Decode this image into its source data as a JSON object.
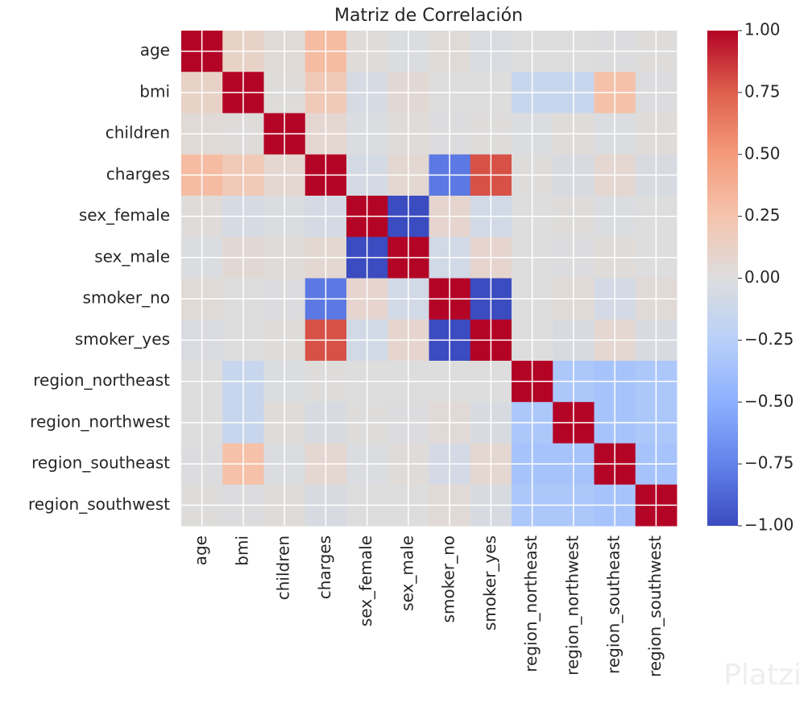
{
  "chart_data": {
    "type": "heatmap",
    "title": "Matriz de Correlación",
    "categories": [
      "age",
      "bmi",
      "children",
      "charges",
      "sex_female",
      "sex_male",
      "smoker_no",
      "smoker_yes",
      "region_northeast",
      "region_northwest",
      "region_southeast",
      "region_southwest"
    ],
    "values": [
      [
        1,
        0.11,
        0.04,
        0.3,
        0.02,
        -0.02,
        0.03,
        -0.03,
        0.0,
        0.0,
        -0.01,
        0.01
      ],
      [
        0.11,
        1,
        0.01,
        0.2,
        -0.05,
        0.05,
        0.0,
        0.0,
        -0.14,
        -0.14,
        0.27,
        -0.01
      ],
      [
        0.04,
        0.01,
        1,
        0.07,
        -0.02,
        0.02,
        -0.01,
        0.01,
        -0.02,
        0.02,
        -0.02,
        0.02
      ],
      [
        0.3,
        0.2,
        0.07,
        1,
        -0.06,
        0.06,
        -0.79,
        0.79,
        0.01,
        -0.04,
        0.07,
        -0.04
      ],
      [
        0.02,
        -0.05,
        -0.02,
        -0.06,
        1,
        -1,
        0.08,
        -0.08,
        0.0,
        0.01,
        -0.02,
        0.0
      ],
      [
        -0.02,
        0.05,
        0.02,
        0.06,
        -1,
        1,
        -0.08,
        0.08,
        0.0,
        -0.01,
        0.02,
        0.0
      ],
      [
        0.03,
        0.0,
        -0.01,
        -0.79,
        0.08,
        -0.08,
        1,
        -1,
        0.0,
        0.04,
        -0.07,
        0.04
      ],
      [
        -0.03,
        0.0,
        0.01,
        0.79,
        -0.08,
        0.08,
        -1,
        1,
        0.0,
        -0.04,
        0.07,
        -0.04
      ],
      [
        0.0,
        -0.14,
        -0.02,
        0.01,
        0.0,
        0.0,
        0.0,
        0.0,
        1,
        -0.32,
        -0.35,
        -0.32
      ],
      [
        0.0,
        -0.14,
        0.02,
        -0.04,
        0.01,
        -0.01,
        0.04,
        -0.04,
        -0.32,
        1,
        -0.35,
        -0.32
      ],
      [
        -0.01,
        0.27,
        -0.02,
        0.07,
        -0.02,
        0.02,
        -0.07,
        0.07,
        -0.35,
        -0.35,
        1,
        -0.35
      ],
      [
        0.01,
        -0.01,
        0.02,
        -0.04,
        0.0,
        0.0,
        0.04,
        -0.04,
        -0.32,
        -0.32,
        -0.35,
        1
      ]
    ],
    "colormap": "coolwarm",
    "zlim": [
      -1,
      1
    ],
    "zticks": [
      {
        "value": 1,
        "label": "1.00"
      },
      {
        "value": 0.75,
        "label": "0.75"
      },
      {
        "value": 0.5,
        "label": "0.50"
      },
      {
        "value": 0.25,
        "label": "0.25"
      },
      {
        "value": 0,
        "label": "0.00"
      },
      {
        "value": -0.25,
        "label": "−0.25"
      },
      {
        "value": -0.5,
        "label": "−0.50"
      },
      {
        "value": -0.75,
        "label": "−0.75"
      },
      {
        "value": -1,
        "label": "−1.00"
      }
    ],
    "grid": true,
    "watermark": "Platzi"
  }
}
